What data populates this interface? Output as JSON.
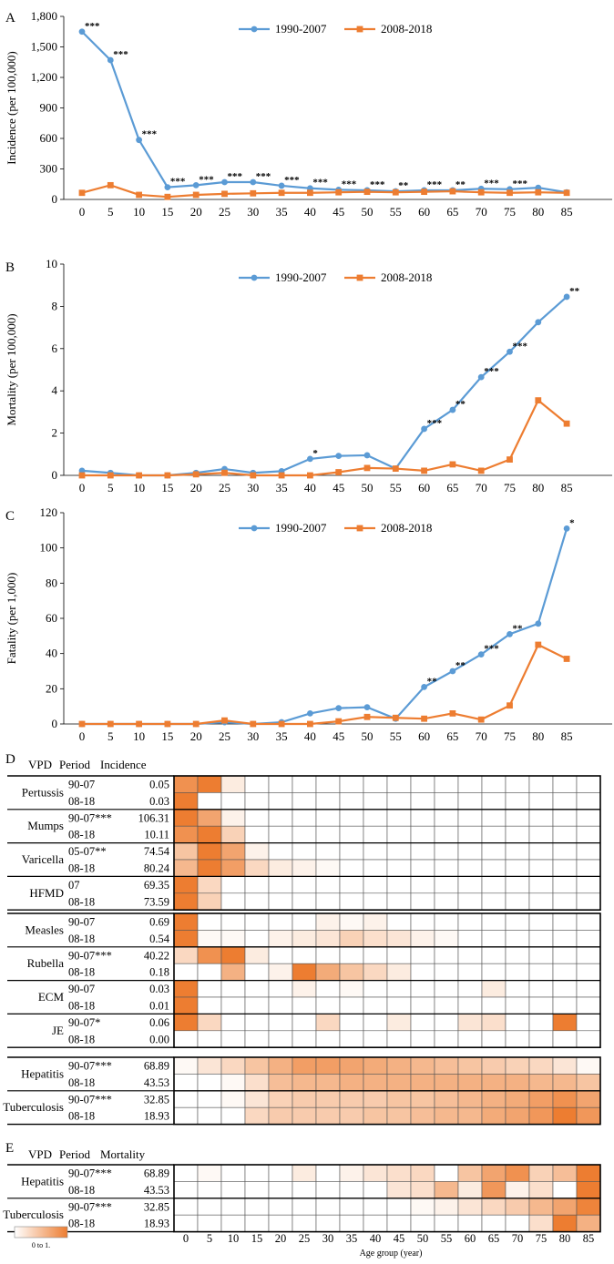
{
  "colors": {
    "series1": "#5B9BD5",
    "series2": "#ED7D31",
    "heat": "#ED7D31",
    "grid": "#000000"
  },
  "chart_data": [
    {
      "panel": "A",
      "type": "line",
      "ylabel": "Incidence  (per 100,000)",
      "x": [
        0,
        5,
        10,
        15,
        20,
        25,
        30,
        35,
        40,
        45,
        50,
        55,
        60,
        65,
        70,
        75,
        80,
        85
      ],
      "yticks": [
        "0",
        "300",
        "600",
        "900",
        "1,200",
        "1,500",
        "1,800"
      ],
      "ylim": [
        0,
        1800
      ],
      "series": [
        {
          "name": "1990-2007",
          "values": [
            1650,
            1370,
            585,
            120,
            140,
            170,
            170,
            135,
            110,
            95,
            90,
            80,
            90,
            90,
            105,
            100,
            115,
            70
          ]
        },
        {
          "name": "2008-2018",
          "values": [
            65,
            140,
            45,
            25,
            45,
            55,
            60,
            65,
            65,
            70,
            75,
            70,
            75,
            80,
            70,
            65,
            70,
            65
          ]
        }
      ],
      "annotations": [
        "***",
        "***",
        "***",
        "***",
        "***",
        "***",
        "***",
        "***",
        "***",
        "***",
        "***",
        "**",
        "***",
        "**",
        "***",
        "***",
        "",
        ""
      ]
    },
    {
      "panel": "B",
      "type": "line",
      "ylabel": "Mortality  (per 100,000)",
      "x": [
        0,
        5,
        10,
        15,
        20,
        25,
        30,
        35,
        40,
        45,
        50,
        55,
        60,
        65,
        70,
        75,
        80,
        85
      ],
      "yticks": [
        "0",
        "2",
        "4",
        "6",
        "8",
        "10"
      ],
      "ylim": [
        0,
        10
      ],
      "series": [
        {
          "name": "1990-2007",
          "values": [
            0.22,
            0.12,
            0.0,
            0.0,
            0.12,
            0.3,
            0.12,
            0.2,
            0.78,
            0.92,
            0.95,
            0.32,
            2.2,
            3.1,
            4.65,
            5.85,
            7.25,
            8.45
          ]
        },
        {
          "name": "2008-2018",
          "values": [
            0.0,
            0.0,
            0.0,
            0.0,
            0.05,
            0.12,
            0.0,
            0.0,
            0.0,
            0.15,
            0.35,
            0.32,
            0.22,
            0.52,
            0.22,
            0.75,
            3.55,
            2.45
          ]
        }
      ],
      "annotations": [
        "",
        "",
        "",
        "",
        "",
        "",
        "",
        "",
        "*",
        "",
        "",
        "",
        "***",
        "**",
        "***",
        "***",
        "",
        "**"
      ]
    },
    {
      "panel": "C",
      "type": "line",
      "ylabel": "Fatality  (per 1,000)",
      "x": [
        0,
        5,
        10,
        15,
        20,
        25,
        30,
        35,
        40,
        45,
        50,
        55,
        60,
        65,
        70,
        75,
        80,
        85
      ],
      "yticks": [
        "0",
        "20",
        "40",
        "60",
        "80",
        "100",
        "120"
      ],
      "ylim": [
        0,
        120
      ],
      "series": [
        {
          "name": "1990-2007",
          "values": [
            0,
            0,
            0,
            0,
            0,
            1,
            0,
            1,
            6,
            9,
            9.5,
            3,
            21,
            30,
            39.5,
            51,
            57,
            111
          ]
        },
        {
          "name": "2008-2018",
          "values": [
            0,
            0,
            0,
            0,
            0,
            2,
            0,
            0,
            0,
            1.5,
            4,
            3.5,
            3,
            6,
            2.5,
            10.5,
            45,
            37
          ]
        }
      ],
      "annotations": [
        "",
        "",
        "",
        "",
        "",
        "",
        "",
        "",
        "",
        "",
        "",
        "",
        "**",
        "**",
        "***",
        "**",
        "",
        "*"
      ]
    },
    {
      "panel": "D",
      "type": "heatmap",
      "headers": [
        "VPD",
        "Period",
        "Incidence"
      ],
      "x": [
        "0",
        "5",
        "10",
        "15",
        "20",
        "25",
        "30",
        "35",
        "40",
        "45",
        "50",
        "55",
        "60",
        "65",
        "70",
        "75",
        "80",
        "85"
      ],
      "groups": [
        {
          "rows": [
            {
              "vpd": "Pertussis",
              "period": "90-07",
              "value": "0.05",
              "cells": [
                0.85,
                1,
                0.15,
                0,
                0,
                0,
                0,
                0,
                0,
                0,
                0,
                0,
                0,
                0,
                0,
                0,
                0,
                0
              ]
            },
            {
              "vpd": "",
              "period": "08-18",
              "value": "0.03",
              "cells": [
                1,
                0,
                0,
                0,
                0,
                0,
                0,
                0,
                0,
                0,
                0,
                0,
                0,
                0,
                0,
                0,
                0,
                0
              ]
            },
            {
              "vpd": "Mumps",
              "period": "90-07***",
              "value": "106.31",
              "cells": [
                1,
                0.7,
                0.1,
                0,
                0,
                0,
                0,
                0,
                0,
                0,
                0,
                0,
                0,
                0,
                0,
                0,
                0,
                0
              ]
            },
            {
              "vpd": "",
              "period": "08-18",
              "value": "10.11",
              "cells": [
                0.85,
                1,
                0.35,
                0,
                0,
                0,
                0,
                0,
                0,
                0,
                0,
                0,
                0,
                0,
                0,
                0,
                0,
                0
              ]
            },
            {
              "vpd": "Varicella",
              "period": "05-07**",
              "value": "74.54",
              "cells": [
                0.45,
                1,
                0.7,
                0.1,
                0,
                0,
                0,
                0,
                0,
                0,
                0,
                0,
                0,
                0,
                0,
                0,
                0,
                0
              ]
            },
            {
              "vpd": "",
              "period": "08-18",
              "value": "80.24",
              "cells": [
                0.55,
                1,
                0.75,
                0.3,
                0.15,
                0.1,
                0.05,
                0,
                0,
                0,
                0,
                0,
                0,
                0,
                0,
                0,
                0,
                0
              ]
            },
            {
              "vpd": "HFMD",
              "period": "07",
              "value": "69.35",
              "cells": [
                1,
                0.3,
                0,
                0,
                0,
                0,
                0,
                0,
                0,
                0,
                0,
                0,
                0,
                0,
                0,
                0,
                0,
                0
              ]
            },
            {
              "vpd": "",
              "period": "08-18",
              "value": "73.59",
              "cells": [
                1,
                0.35,
                0,
                0,
                0,
                0,
                0,
                0,
                0,
                0,
                0,
                0,
                0,
                0,
                0,
                0,
                0,
                0
              ]
            }
          ]
        },
        {
          "rows": [
            {
              "vpd": "Measles",
              "period": "90-07",
              "value": "0.69",
              "cells": [
                1,
                0,
                0,
                0,
                0,
                0,
                0.1,
                0.05,
                0.1,
                0,
                0,
                0,
                0,
                0,
                0,
                0,
                0,
                0
              ]
            },
            {
              "vpd": "",
              "period": "08-18",
              "value": "0.54",
              "cells": [
                1,
                0.05,
                0.05,
                0,
                0.1,
                0.15,
                0.2,
                0.35,
                0.25,
                0.2,
                0.1,
                0.05,
                0,
                0,
                0,
                0,
                0,
                0
              ]
            },
            {
              "vpd": "Rubella",
              "period": "90-07***",
              "value": "40.22",
              "cells": [
                0.3,
                0.85,
                1,
                0.15,
                0,
                0,
                0,
                0,
                0,
                0,
                0,
                0,
                0,
                0,
                0,
                0,
                0,
                0
              ]
            },
            {
              "vpd": "",
              "period": "08-18",
              "value": "0.18",
              "cells": [
                0,
                0,
                0.6,
                0,
                0.1,
                1,
                0.65,
                0.45,
                0.3,
                0.15,
                0,
                0,
                0,
                0,
                0,
                0,
                0,
                0
              ]
            },
            {
              "vpd": "ECM",
              "period": "90-07",
              "value": "0.03",
              "cells": [
                1,
                0,
                0,
                0,
                0,
                0.1,
                0,
                0.05,
                0,
                0,
                0,
                0,
                0,
                0.15,
                0,
                0,
                0,
                0
              ]
            },
            {
              "vpd": "",
              "period": "08-18",
              "value": "0.01",
              "cells": [
                1,
                0,
                0,
                0,
                0,
                0,
                0,
                0,
                0,
                0,
                0,
                0,
                0,
                0,
                0,
                0,
                0,
                0
              ]
            },
            {
              "vpd": "JE",
              "period": "90-07*",
              "value": "0.06",
              "cells": [
                1,
                0.3,
                0,
                0,
                0,
                0,
                0.3,
                0,
                0,
                0.15,
                0,
                0,
                0.2,
                0.25,
                0,
                0,
                1,
                0
              ]
            },
            {
              "vpd": "",
              "period": "08-18",
              "value": "0.00",
              "cells": [
                0,
                0,
                0,
                0,
                0,
                0,
                0,
                0,
                0,
                0,
                0,
                0,
                0,
                0,
                0,
                0,
                0,
                0
              ]
            }
          ]
        },
        {
          "rows": [
            {
              "vpd": "Hepatitis",
              "period": "90-07***",
              "value": "68.89",
              "cells": [
                0.05,
                0.2,
                0.3,
                0.45,
                0.6,
                0.75,
                0.75,
                0.7,
                0.65,
                0.6,
                0.55,
                0.5,
                0.45,
                0.4,
                0.35,
                0.3,
                0.2,
                0.05
              ]
            },
            {
              "vpd": "",
              "period": "08-18",
              "value": "43.53",
              "cells": [
                0,
                0,
                0.05,
                0.25,
                0.5,
                0.55,
                0.55,
                0.6,
                0.6,
                0.6,
                0.6,
                0.6,
                0.6,
                0.6,
                0.6,
                0.55,
                0.55,
                0.45
              ]
            },
            {
              "vpd": "Tuberculosis",
              "period": "90-07***",
              "value": "32.85",
              "cells": [
                0,
                0,
                0.05,
                0.2,
                0.35,
                0.4,
                0.4,
                0.4,
                0.4,
                0.45,
                0.45,
                0.5,
                0.55,
                0.6,
                0.65,
                0.75,
                0.85,
                0.7
              ]
            },
            {
              "vpd": "",
              "period": "08-18",
              "value": "18.93",
              "cells": [
                0,
                0,
                0,
                0.3,
                0.4,
                0.4,
                0.4,
                0.4,
                0.45,
                0.45,
                0.5,
                0.55,
                0.55,
                0.65,
                0.7,
                0.8,
                1,
                0.8
              ]
            }
          ]
        }
      ]
    },
    {
      "panel": "E",
      "type": "heatmap",
      "headers": [
        "VPD",
        "Period",
        "Mortality"
      ],
      "xlabel": "Age group (year)",
      "legend_label": "0 to 1.",
      "x": [
        "0",
        "5",
        "10",
        "15",
        "20",
        "25",
        "30",
        "35",
        "40",
        "45",
        "50",
        "55",
        "60",
        "65",
        "70",
        "75",
        "80",
        "85"
      ],
      "groups": [
        {
          "rows": [
            {
              "vpd": "Hepatitis",
              "period": "90-07***",
              "value": "68.89",
              "cells": [
                0,
                0.05,
                0,
                0,
                0,
                0.15,
                0,
                0.1,
                0.2,
                0.25,
                0.3,
                0,
                0.45,
                0.7,
                0.85,
                0.35,
                0.5,
                1
              ]
            },
            {
              "vpd": "",
              "period": "08-18",
              "value": "43.53",
              "cells": [
                0,
                0,
                0,
                0,
                0,
                0,
                0,
                0,
                0,
                0.2,
                0.25,
                0.55,
                0.15,
                0.8,
                0.1,
                0.25,
                0,
                1
              ]
            },
            {
              "vpd": "Tuberculosis",
              "period": "90-07***",
              "value": "32.85",
              "cells": [
                0,
                0,
                0,
                0,
                0,
                0,
                0,
                0,
                0,
                0,
                0.05,
                0.1,
                0.2,
                0.3,
                0.4,
                0.55,
                0.7,
                0.95
              ]
            },
            {
              "vpd": "",
              "period": "08-18",
              "value": "18.93",
              "cells": [
                0,
                0,
                0,
                0,
                0,
                0,
                0,
                0,
                0,
                0,
                0,
                0,
                0,
                0,
                0,
                0.25,
                1,
                0.6
              ]
            }
          ]
        }
      ]
    }
  ]
}
